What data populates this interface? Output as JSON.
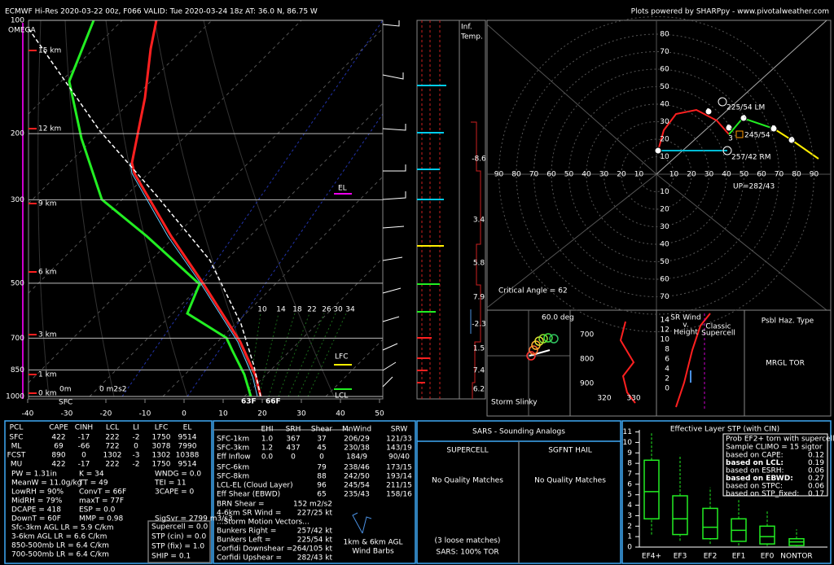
{
  "header": {
    "left": "ECMWF Hi-Res 2020-03-22 00z, F066    VALID: Tue 2020-03-24 18z    AT: 36.0 N, 86.75 W",
    "right": "Plots powered by SHARPpy - www.pivotalweather.com"
  },
  "skewt": {
    "pressures": [
      100,
      200,
      300,
      500,
      700,
      850,
      1000
    ],
    "temps": [
      -40,
      -30,
      -20,
      -10,
      0,
      10,
      20,
      30,
      40,
      50
    ],
    "heights": [
      "15 km",
      "12 km",
      "9 km",
      "6 km",
      "3 km",
      "1 km",
      "0 km"
    ],
    "omega": "OMEGA",
    "el": "EL",
    "lfc": "LFC",
    "lcl": "LCL",
    "sfc": "SFC",
    "zero_m": "0m",
    "srh": "0 m2s2",
    "sfc_td": "63F",
    "sfc_t": "66F",
    "mixing_ratios": [
      10,
      14,
      18,
      22,
      26,
      30,
      34
    ]
  },
  "inferred": {
    "title": [
      "Inf.",
      "Temp."
    ],
    "values": [
      -8.6,
      3.4,
      5.8,
      7.9,
      -2.3,
      1.5,
      7.4,
      6.2
    ]
  },
  "hodograph": {
    "speeds": [
      10,
      20,
      30,
      40,
      50,
      60,
      70,
      80,
      90
    ],
    "points": [
      1,
      2,
      3,
      4,
      5,
      6
    ],
    "lm": "225/54 LM",
    "mean": "245/54",
    "rm": "257/42 RM",
    "up": "UP=282/43",
    "critical": "Critical Angle = 62"
  },
  "slinky": {
    "angle": "60.0 deg",
    "title": "Storm Slinky"
  },
  "theta": {
    "pressures": [
      700,
      800,
      900
    ],
    "values": [
      320,
      330
    ]
  },
  "srwind": {
    "heights": [
      14,
      12,
      10,
      8,
      6,
      4,
      2,
      0
    ],
    "title": [
      "SR Wind",
      "v.",
      "Height"
    ],
    "classic": [
      "Classic",
      "Supercell"
    ]
  },
  "hazard": {
    "title": "Psbl Haz. Type",
    "value": "MRGL TOR"
  },
  "thermo": {
    "header": [
      "PCL",
      "CAPE",
      "CINH",
      "LCL",
      "LI",
      "LFC",
      "EL"
    ],
    "rows": [
      [
        "SFC",
        422,
        -17,
        222,
        -2,
        1750,
        9514
      ],
      [
        "ML",
        69,
        -66,
        722,
        0,
        3078,
        7990
      ],
      [
        "FCST",
        890,
        0,
        1302,
        -3,
        1302,
        10388
      ],
      [
        "MU",
        422,
        -17,
        222,
        -2,
        1750,
        9514
      ]
    ],
    "indices": [
      [
        "PW = 1.31in",
        "K = 34",
        "WNDG = 0.0"
      ],
      [
        "MeanW = 11.0g/kg",
        "TT = 49",
        "TEI = 11"
      ],
      [
        "LowRH = 90%",
        "ConvT = 66F",
        "3CAPE = 0"
      ],
      [
        "MidRH = 79%",
        "maxT = 77F"
      ],
      [
        "DCAPE = 418",
        "ESP = 0.0"
      ],
      [
        "DownT = 60F",
        "MMP = 0.98",
        "SigSvr = 2799 m3/s3"
      ]
    ],
    "lapse": [
      "Sfc-3km AGL LR = 5.9 C/km",
      "3-6km AGL LR = 6.6 C/km",
      "850-500mb LR = 6.4 C/km",
      "700-500mb LR = 6.4 C/km"
    ],
    "composite": [
      "Supercell = 0.0",
      "STP (cin) = 0.0",
      "STP (fix) = 1.0",
      "SHIP = 0.1"
    ]
  },
  "kinematics": {
    "header": [
      "EHI",
      "SRH",
      "Shear",
      "MnWind",
      "SRW"
    ],
    "rows": [
      [
        "SFC-1km",
        "1.0",
        "367",
        "37",
        "206/29",
        "121/33"
      ],
      [
        "SFC-3km",
        "1.2",
        "437",
        "45",
        "230/38",
        "143/19"
      ],
      [
        "Eff Inflow",
        "0.0",
        "0",
        "0",
        "184/9",
        "90/40"
      ]
    ],
    "rows2": [
      [
        "SFC-6km",
        "79",
        "238/46",
        "173/15"
      ],
      [
        "SFC-8km",
        "88",
        "242/50",
        "193/14"
      ],
      [
        "LCL-EL (Cloud Layer)",
        "96",
        "245/54",
        "211/15"
      ],
      [
        "Eff Shear (EBWD)",
        "65",
        "235/43",
        "158/16"
      ]
    ],
    "params": [
      [
        "BRN Shear =",
        "152 m2/s2"
      ],
      [
        "4-6km SR Wind =",
        "227/25 kt"
      ]
    ],
    "motion_title": "...Storm Motion Vectors...",
    "motion": [
      [
        "Bunkers Right =",
        "257/42 kt"
      ],
      [
        "Bunkers Left =",
        "225/54 kt"
      ],
      [
        "Corfidi Downshear =",
        "264/105 kt"
      ],
      [
        "Corfidi Upshear =",
        "282/43 kt"
      ]
    ],
    "barbs_label": [
      "1km & 6km AGL",
      "Wind Barbs"
    ]
  },
  "sars": {
    "title": "SARS - Sounding Analogs",
    "supercell": "SUPERCELL",
    "hail": "SGFNT HAIL",
    "supercell_result": "No Quality Matches",
    "hail_result": "No Quality Matches",
    "loose": "(3 loose matches)",
    "summary": "SARS: 100% TOR"
  },
  "stp": {
    "title": "Effective Layer STP (with CIN)",
    "yticks": [
      0,
      1,
      2,
      3,
      4,
      5,
      6,
      7,
      8,
      9,
      10,
      11
    ],
    "ylim": [
      0,
      11.2
    ],
    "categories": [
      "EF4+",
      "EF3",
      "EF2",
      "EF1",
      "EF0",
      "NONTOR"
    ],
    "boxes": [
      {
        "low": 1.2,
        "q1": 2.7,
        "median": 5.3,
        "q3": 8.3,
        "high": 10.9
      },
      {
        "low": 0.6,
        "q1": 1.2,
        "median": 2.7,
        "q3": 4.9,
        "high": 8.8
      },
      {
        "low": 0.3,
        "q1": 0.8,
        "median": 1.9,
        "q3": 3.7,
        "high": 5.7
      },
      {
        "low": 0.15,
        "q1": 0.55,
        "median": 1.6,
        "q3": 2.7,
        "high": 4.5
      },
      {
        "low": 0.1,
        "q1": 0.3,
        "median": 1.0,
        "q3": 2.0,
        "high": 3.5
      },
      {
        "low": 0,
        "q1": 0.15,
        "median": 0.5,
        "q3": 0.8,
        "high": 1.7
      }
    ],
    "legend": {
      "title": "Prob EF2+ torn with supercell",
      "climo": "Sample CLIMO = 15 sigtor",
      "rows": [
        [
          "based on CAPE:",
          "0.12"
        ],
        [
          "based on LCL:",
          "0.19"
        ],
        [
          "based on ESRH:",
          "0.06"
        ],
        [
          "based on EBWD:",
          "0.27"
        ],
        [
          "based on STPC:",
          "0.06"
        ],
        [
          "based on STP_fixed:",
          "0.17"
        ]
      ]
    }
  }
}
